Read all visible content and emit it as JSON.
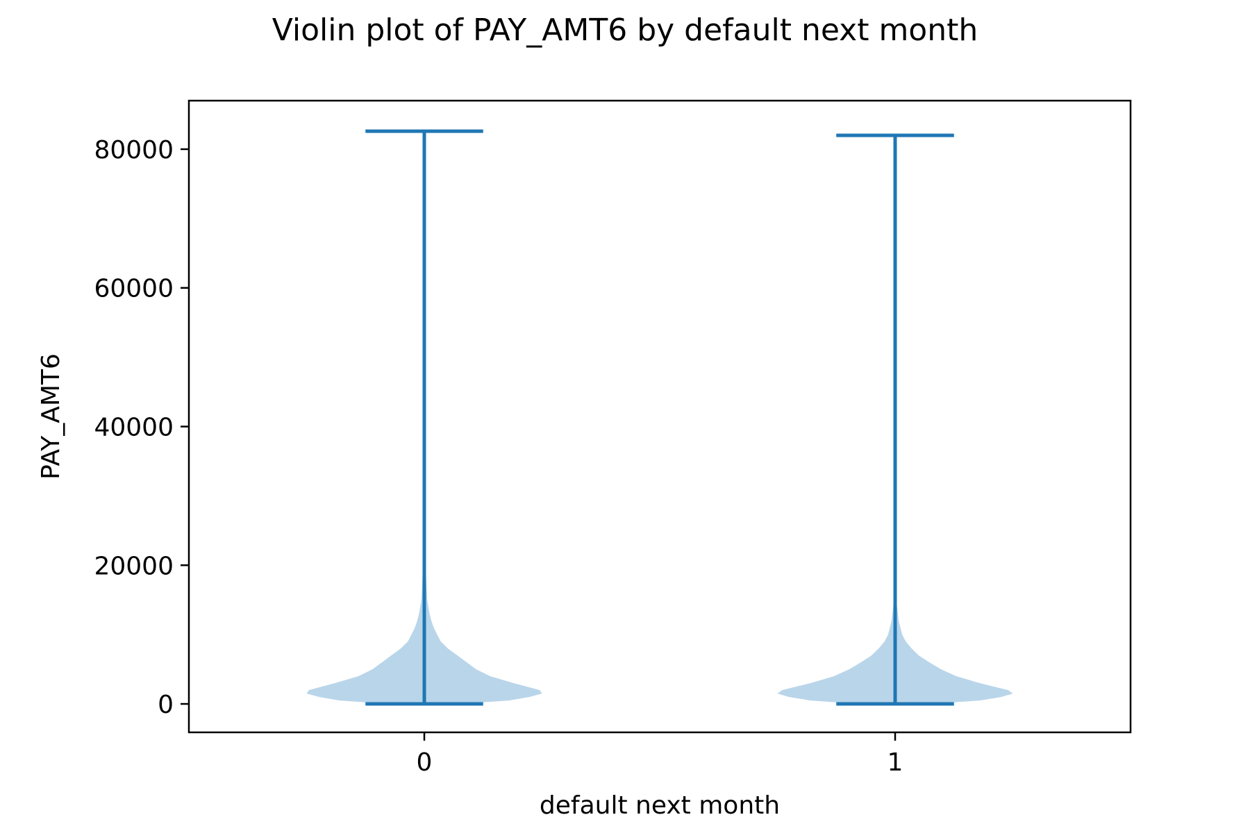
{
  "chart_data": {
    "type": "violin",
    "title": "Violin plot of PAY_AMT6 by default next month",
    "xlabel": "default next month",
    "ylabel": "PAY_AMT6",
    "categories": [
      "0",
      "1"
    ],
    "ylim": [
      -4100,
      87000
    ],
    "yticks": [
      0,
      20000,
      40000,
      60000,
      80000
    ],
    "ytick_labels": [
      "0",
      "20000",
      "40000",
      "60000",
      "80000"
    ],
    "grid": false,
    "colors": {
      "body": "#b9d5ea",
      "lines": "#1f77b4",
      "frame": "#000000"
    },
    "violins": [
      {
        "category": "0",
        "min": 0,
        "max": 82600,
        "width_scale": 0.5,
        "density": [
          [
            0,
            0.31
          ],
          [
            500,
            0.72
          ],
          [
            1000,
            0.89
          ],
          [
            1500,
            1.0
          ],
          [
            2000,
            0.98
          ],
          [
            3000,
            0.76
          ],
          [
            4000,
            0.56
          ],
          [
            5000,
            0.44
          ],
          [
            6000,
            0.36
          ],
          [
            7000,
            0.28
          ],
          [
            8000,
            0.2
          ],
          [
            9000,
            0.14
          ],
          [
            10000,
            0.11
          ],
          [
            11000,
            0.08
          ],
          [
            12000,
            0.06
          ],
          [
            13000,
            0.045
          ],
          [
            15000,
            0.025
          ],
          [
            18000,
            0.016
          ],
          [
            22000,
            0.006
          ],
          [
            30000,
            0.002
          ],
          [
            45000,
            0.001
          ],
          [
            82600,
            0.0
          ]
        ]
      },
      {
        "category": "1",
        "min": 0,
        "max": 82000,
        "width_scale": 0.5,
        "density": [
          [
            0,
            0.31
          ],
          [
            500,
            0.72
          ],
          [
            1000,
            0.9
          ],
          [
            1500,
            1.0
          ],
          [
            2000,
            0.96
          ],
          [
            3000,
            0.72
          ],
          [
            4000,
            0.52
          ],
          [
            5000,
            0.39
          ],
          [
            6000,
            0.29
          ],
          [
            7000,
            0.2
          ],
          [
            8000,
            0.14
          ],
          [
            9000,
            0.09
          ],
          [
            10000,
            0.06
          ],
          [
            12000,
            0.03
          ],
          [
            15000,
            0.01
          ],
          [
            20000,
            0.003
          ],
          [
            40000,
            0.001
          ],
          [
            82000,
            0.0
          ]
        ]
      }
    ]
  }
}
